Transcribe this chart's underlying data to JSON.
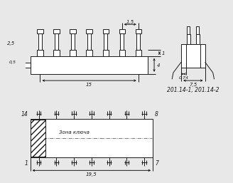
{
  "bg_color": "#e8e8e8",
  "line_color": "#1a1a1a",
  "title_text": "201.14-1, 201.14-2",
  "zona_text": "Зона ключа",
  "dim_15": "15",
  "dim_25": "2,5",
  "dim_05": "0,5",
  "dim_15t": "1,5",
  "dim_4": "4",
  "dim_1": "1",
  "dim_075": "0,74",
  "dim_75": "7,5",
  "dim_195": "19,5",
  "pin14": "14",
  "pin8": "8",
  "pin1": "1",
  "pin7": "7"
}
